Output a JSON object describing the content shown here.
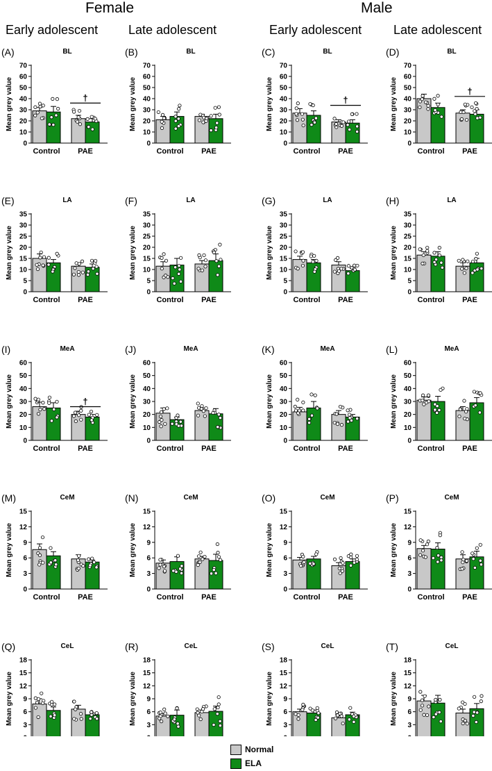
{
  "headers": {
    "female": "Female",
    "male": "Male",
    "columns": [
      "Early adolescent",
      "Late adolescent",
      "Early adolescent",
      "Late adolescent"
    ]
  },
  "legend": [
    {
      "label": "Normal",
      "color": "#c8c8c8"
    },
    {
      "label": "ELA",
      "color": "#0f8a18"
    }
  ],
  "colors": {
    "normal": "#c8c8c8",
    "ela": "#0f8a18"
  },
  "chart_data": [
    {
      "type": "bar",
      "panel": "(A)",
      "title": "BL",
      "ylabel": "Mean grey value",
      "ylim": [
        0,
        70
      ],
      "yticks": [
        0,
        10,
        20,
        30,
        40,
        50,
        60,
        70
      ],
      "categories": [
        "Control",
        "PAE"
      ],
      "series": [
        {
          "name": "Normal",
          "values": [
            29,
            22
          ],
          "errors": [
            3,
            3
          ]
        },
        {
          "name": "ELA",
          "values": [
            28,
            19
          ],
          "errors": [
            5,
            3
          ]
        }
      ],
      "significance": {
        "label": "†",
        "group": "PAE",
        "y": 36
      }
    },
    {
      "type": "bar",
      "panel": "(B)",
      "title": "BL",
      "ylabel": "Mean grey value",
      "ylim": [
        0,
        70
      ],
      "yticks": [
        0,
        10,
        20,
        30,
        40,
        50,
        60,
        70
      ],
      "categories": [
        "Control",
        "PAE"
      ],
      "series": [
        {
          "name": "Normal",
          "values": [
            21,
            24
          ],
          "errors": [
            3,
            2
          ]
        },
        {
          "name": "ELA",
          "values": [
            24,
            22
          ],
          "errors": [
            4,
            4
          ]
        }
      ]
    },
    {
      "type": "bar",
      "panel": "(C)",
      "title": "BL",
      "ylabel": "Mean grey value",
      "ylim": [
        0,
        70
      ],
      "yticks": [
        0,
        10,
        20,
        30,
        40,
        50,
        60,
        70
      ],
      "categories": [
        "Control",
        "PAE"
      ],
      "series": [
        {
          "name": "Normal",
          "values": [
            27,
            19
          ],
          "errors": [
            4,
            2
          ]
        },
        {
          "name": "ELA",
          "values": [
            25,
            18
          ],
          "errors": [
            4,
            3
          ]
        }
      ],
      "significance": {
        "label": "†",
        "group": "PAE",
        "y": 34
      }
    },
    {
      "type": "bar",
      "panel": "(D)",
      "title": "BL",
      "ylabel": "Mean grey value",
      "ylim": [
        0,
        70
      ],
      "yticks": [
        0,
        10,
        20,
        30,
        40,
        50,
        60,
        70
      ],
      "categories": [
        "Control",
        "PAE"
      ],
      "series": [
        {
          "name": "Normal",
          "values": [
            40,
            27
          ],
          "errors": [
            4,
            3
          ]
        },
        {
          "name": "ELA",
          "values": [
            32,
            26
          ],
          "errors": [
            4,
            4
          ]
        }
      ],
      "significance": {
        "label": "†",
        "group": "PAE",
        "y": 42
      }
    },
    {
      "type": "bar",
      "panel": "(E)",
      "title": "LA",
      "ylabel": "Mean grey value",
      "ylim": [
        0,
        35
      ],
      "yticks": [
        0,
        5,
        10,
        15,
        20,
        25,
        30,
        35
      ],
      "categories": [
        "Control",
        "PAE"
      ],
      "series": [
        {
          "name": "Normal",
          "values": [
            15,
            11.5
          ],
          "errors": [
            2,
            1.5
          ]
        },
        {
          "name": "ELA",
          "values": [
            13,
            11
          ],
          "errors": [
            1.5,
            1.5
          ]
        }
      ]
    },
    {
      "type": "bar",
      "panel": "(F)",
      "title": "LA",
      "ylabel": "Mean grey value",
      "ylim": [
        0,
        35
      ],
      "yticks": [
        0,
        5,
        10,
        15,
        20,
        25,
        30,
        35
      ],
      "categories": [
        "Control",
        "PAE"
      ],
      "series": [
        {
          "name": "Normal",
          "values": [
            11.5,
            12.5
          ],
          "errors": [
            2,
            1.5
          ]
        },
        {
          "name": "ELA",
          "values": [
            12,
            14
          ],
          "errors": [
            3,
            3
          ]
        }
      ]
    },
    {
      "type": "bar",
      "panel": "(G)",
      "title": "LA",
      "ylabel": "Mean grey value",
      "ylim": [
        0,
        35
      ],
      "yticks": [
        0,
        5,
        10,
        15,
        20,
        25,
        30,
        35
      ],
      "categories": [
        "Control",
        "PAE"
      ],
      "series": [
        {
          "name": "Normal",
          "values": [
            14.5,
            12
          ],
          "errors": [
            1.5,
            1.5
          ]
        },
        {
          "name": "ELA",
          "values": [
            13,
            9.5
          ],
          "errors": [
            1.5,
            1
          ]
        }
      ]
    },
    {
      "type": "bar",
      "panel": "(H)",
      "title": "LA",
      "ylabel": "Mean grey value",
      "ylim": [
        0,
        35
      ],
      "yticks": [
        0,
        5,
        10,
        15,
        20,
        25,
        30,
        35
      ],
      "categories": [
        "Control",
        "PAE"
      ],
      "series": [
        {
          "name": "Normal",
          "values": [
            16.5,
            11.5
          ],
          "errors": [
            1.5,
            1.5
          ]
        },
        {
          "name": "ELA",
          "values": [
            16,
            13
          ],
          "errors": [
            2,
            2
          ]
        }
      ]
    },
    {
      "type": "bar",
      "panel": "(I)",
      "title": "MeA",
      "ylabel": "Mean grey value",
      "ylim": [
        0,
        60
      ],
      "yticks": [
        0,
        10,
        20,
        30,
        40,
        50,
        60
      ],
      "categories": [
        "Control",
        "PAE"
      ],
      "series": [
        {
          "name": "Normal",
          "values": [
            26,
            20
          ],
          "errors": [
            3.5,
            2.5
          ]
        },
        {
          "name": "ELA",
          "values": [
            25,
            18
          ],
          "errors": [
            4,
            2
          ]
        }
      ],
      "significance": {
        "label": "†",
        "group": "PAE",
        "y": 26
      }
    },
    {
      "type": "bar",
      "panel": "(J)",
      "title": "MeA",
      "ylabel": "Mean grey value",
      "ylim": [
        0,
        60
      ],
      "yticks": [
        0,
        10,
        20,
        30,
        40,
        50,
        60
      ],
      "categories": [
        "Control",
        "PAE"
      ],
      "series": [
        {
          "name": "Normal",
          "values": [
            21,
            23
          ],
          "errors": [
            4,
            2
          ]
        },
        {
          "name": "ELA",
          "values": [
            16,
            20.5
          ],
          "errors": [
            2,
            4
          ]
        }
      ]
    },
    {
      "type": "bar",
      "panel": "(K)",
      "title": "MeA",
      "ylabel": "Mean grey value",
      "ylim": [
        0,
        60
      ],
      "yticks": [
        0,
        10,
        20,
        30,
        40,
        50,
        60
      ],
      "categories": [
        "Control",
        "PAE"
      ],
      "series": [
        {
          "name": "Normal",
          "values": [
            22,
            20
          ],
          "errors": [
            3.5,
            3
          ]
        },
        {
          "name": "ELA",
          "values": [
            25,
            18
          ],
          "errors": [
            5,
            2
          ]
        }
      ]
    },
    {
      "type": "bar",
      "panel": "(L)",
      "title": "MeA",
      "ylabel": "Mean grey value",
      "ylim": [
        0,
        60
      ],
      "yticks": [
        0,
        10,
        20,
        30,
        40,
        50,
        60
      ],
      "categories": [
        "Control",
        "PAE"
      ],
      "series": [
        {
          "name": "Normal",
          "values": [
            31,
            23
          ],
          "errors": [
            2.5,
            3
          ]
        },
        {
          "name": "ELA",
          "values": [
            30,
            29
          ],
          "errors": [
            4,
            4
          ]
        }
      ]
    },
    {
      "type": "bar",
      "panel": "(M)",
      "title": "CeM",
      "ylabel": "Mean grey value",
      "ylim": [
        0,
        15
      ],
      "yticks": [
        0,
        3,
        6,
        9,
        12,
        15
      ],
      "categories": [
        "Control",
        "PAE"
      ],
      "series": [
        {
          "name": "Normal",
          "values": [
            7.6,
            5.8
          ],
          "errors": [
            1.1,
            0.8
          ]
        },
        {
          "name": "ELA",
          "values": [
            6.4,
            5.2
          ],
          "errors": [
            0.8,
            0.4
          ]
        }
      ]
    },
    {
      "type": "bar",
      "panel": "(N)",
      "title": "CeM",
      "ylabel": "Mean grey value",
      "ylim": [
        0,
        15
      ],
      "yticks": [
        0,
        3,
        6,
        9,
        12,
        15
      ],
      "categories": [
        "Control",
        "PAE"
      ],
      "series": [
        {
          "name": "Normal",
          "values": [
            5,
            5.8
          ],
          "errors": [
            0.6,
            0.5
          ]
        },
        {
          "name": "ELA",
          "values": [
            5.3,
            5.5
          ],
          "errors": [
            0.9,
            1.2
          ]
        }
      ]
    },
    {
      "type": "bar",
      "panel": "(O)",
      "title": "CeM",
      "ylabel": "Mean grey value",
      "ylim": [
        0,
        15
      ],
      "yticks": [
        0,
        3,
        6,
        9,
        12,
        15
      ],
      "categories": [
        "Control",
        "PAE"
      ],
      "series": [
        {
          "name": "Normal",
          "values": [
            5.6,
            4.5
          ],
          "errors": [
            0.5,
            0.6
          ]
        },
        {
          "name": "ELA",
          "values": [
            5.8,
            5.3
          ],
          "errors": [
            0.5,
            0.5
          ]
        }
      ]
    },
    {
      "type": "bar",
      "panel": "(P)",
      "title": "CeM",
      "ylabel": "Mean grey value",
      "ylim": [
        0,
        15
      ],
      "yticks": [
        0,
        3,
        6,
        9,
        12,
        15
      ],
      "categories": [
        "Control",
        "PAE"
      ],
      "series": [
        {
          "name": "Normal",
          "values": [
            7.8,
            5.8
          ],
          "errors": [
            0.6,
            0.8
          ]
        },
        {
          "name": "ELA",
          "values": [
            7.7,
            6.2
          ],
          "errors": [
            1.2,
            1.1
          ]
        }
      ]
    },
    {
      "type": "bar",
      "panel": "(Q)",
      "title": "CeL",
      "ylabel": "Mean grey value",
      "ylim": [
        0,
        18
      ],
      "yticks": [
        0,
        3,
        6,
        9,
        12,
        15,
        18
      ],
      "categories": [
        "Control",
        "PAE"
      ],
      "series": [
        {
          "name": "Normal",
          "values": [
            7.8,
            6.6
          ],
          "errors": [
            1.2,
            0.9
          ]
        },
        {
          "name": "ELA",
          "values": [
            6.3,
            5.3
          ],
          "errors": [
            0.8,
            0.4
          ]
        }
      ]
    },
    {
      "type": "bar",
      "panel": "(R)",
      "title": "CeL",
      "ylabel": "Mean grey value",
      "ylim": [
        0,
        18
      ],
      "yticks": [
        0,
        3,
        6,
        9,
        12,
        15,
        18
      ],
      "categories": [
        "Control",
        "PAE"
      ],
      "series": [
        {
          "name": "Normal",
          "values": [
            5,
            5.8
          ],
          "errors": [
            0.6,
            0.6
          ]
        },
        {
          "name": "ELA",
          "values": [
            5.2,
            6.1
          ],
          "errors": [
            1.2,
            1.2
          ]
        }
      ]
    },
    {
      "type": "bar",
      "panel": "(S)",
      "title": "CeL",
      "ylabel": "Mean grey value",
      "ylim": [
        0,
        18
      ],
      "yticks": [
        0,
        3,
        6,
        9,
        12,
        15,
        18
      ],
      "categories": [
        "Control",
        "PAE"
      ],
      "series": [
        {
          "name": "Normal",
          "values": [
            6,
            4.6
          ],
          "errors": [
            0.6,
            0.5
          ]
        },
        {
          "name": "ELA",
          "values": [
            5.7,
            5.3
          ],
          "errors": [
            0.7,
            0.6
          ]
        }
      ]
    },
    {
      "type": "bar",
      "panel": "(T)",
      "title": "CeL",
      "ylabel": "Mean grey value",
      "ylim": [
        0,
        18
      ],
      "yticks": [
        0,
        3,
        6,
        9,
        12,
        15,
        18
      ],
      "categories": [
        "Control",
        "PAE"
      ],
      "series": [
        {
          "name": "Normal",
          "values": [
            8.5,
            5.7
          ],
          "errors": [
            1.3,
            0.9
          ]
        },
        {
          "name": "ELA",
          "values": [
            8,
            6.7
          ],
          "errors": [
            1.8,
            1.2
          ]
        }
      ]
    }
  ]
}
